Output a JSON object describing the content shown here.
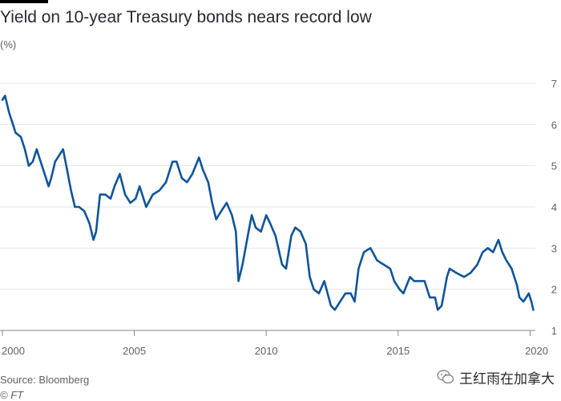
{
  "header": {
    "title": "Yield on 10-year Treasury bonds nears record low",
    "unit": "(%)"
  },
  "footer": {
    "source": "Source: Bloomberg",
    "credit": "© FT"
  },
  "watermark": {
    "text": "王红雨在加拿大",
    "icon": "wechat-icon"
  },
  "colors": {
    "line": "#0f5499",
    "grid": "#e6e6e6",
    "axis": "#66605c",
    "text": "#33302e"
  },
  "chart_data": {
    "type": "line",
    "title": "Yield on 10-year Treasury bonds nears record low",
    "ylabel": "(%)",
    "xlabel": "",
    "xlim": [
      2000,
      2020.2
    ],
    "ylim": [
      1,
      7
    ],
    "y_ticks": [
      1,
      2,
      3,
      4,
      5,
      6,
      7
    ],
    "x_ticks": [
      "2000",
      "2005",
      "2010",
      "2015",
      "2020"
    ],
    "grid": true,
    "y_axis_side": "right",
    "series": [
      {
        "x": [
          2000.0,
          2000.1,
          2000.25,
          2000.4,
          2000.5,
          2000.7,
          2000.85,
          2001.0,
          2001.15,
          2001.3,
          2001.45,
          2001.6,
          2001.75,
          2001.85,
          2002.0,
          2002.2,
          2002.3,
          2002.45,
          2002.6,
          2002.75,
          2002.9,
          2003.1,
          2003.3,
          2003.45,
          2003.55,
          2003.7,
          2003.9,
          2004.1,
          2004.25,
          2004.45,
          2004.65,
          2004.85,
          2005.05,
          2005.2,
          2005.45,
          2005.7,
          2005.95,
          2006.2,
          2006.45,
          2006.6,
          2006.8,
          2007.0,
          2007.2,
          2007.45,
          2007.6,
          2007.8,
          2007.95,
          2008.1,
          2008.3,
          2008.5,
          2008.7,
          2008.85,
          2008.95,
          2009.1,
          2009.3,
          2009.45,
          2009.6,
          2009.8,
          2010.0,
          2010.15,
          2010.35,
          2010.6,
          2010.75,
          2010.95,
          2011.1,
          2011.3,
          2011.5,
          2011.65,
          2011.8,
          2012.0,
          2012.2,
          2012.45,
          2012.6,
          2012.8,
          2013.0,
          2013.2,
          2013.35,
          2013.5,
          2013.7,
          2013.95,
          2014.2,
          2014.45,
          2014.7,
          2014.85,
          2015.05,
          2015.2,
          2015.45,
          2015.6,
          2015.8,
          2016.0,
          2016.2,
          2016.4,
          2016.5,
          2016.65,
          2016.85,
          2016.95,
          2017.2,
          2017.5,
          2017.75,
          2018.0,
          2018.2,
          2018.4,
          2018.6,
          2018.8,
          2018.95,
          2019.1,
          2019.3,
          2019.5,
          2019.6,
          2019.75,
          2019.95,
          2020.05,
          2020.12
        ],
        "y": [
          6.6,
          6.7,
          6.3,
          6.0,
          5.8,
          5.7,
          5.4,
          5.0,
          5.1,
          5.4,
          5.1,
          4.8,
          4.5,
          4.7,
          5.1,
          5.3,
          5.4,
          4.9,
          4.4,
          4.0,
          4.0,
          3.9,
          3.6,
          3.2,
          3.4,
          4.3,
          4.3,
          4.2,
          4.5,
          4.8,
          4.3,
          4.1,
          4.2,
          4.5,
          4.0,
          4.3,
          4.4,
          4.6,
          5.1,
          5.1,
          4.7,
          4.6,
          4.8,
          5.2,
          4.9,
          4.6,
          4.1,
          3.7,
          3.9,
          4.1,
          3.8,
          3.4,
          2.2,
          2.6,
          3.3,
          3.8,
          3.5,
          3.4,
          3.8,
          3.6,
          3.3,
          2.6,
          2.5,
          3.3,
          3.5,
          3.4,
          3.1,
          2.3,
          2.0,
          1.9,
          2.2,
          1.6,
          1.5,
          1.7,
          1.9,
          1.9,
          1.7,
          2.5,
          2.9,
          3.0,
          2.7,
          2.6,
          2.5,
          2.2,
          2.0,
          1.9,
          2.3,
          2.2,
          2.2,
          2.2,
          1.8,
          1.8,
          1.5,
          1.6,
          2.3,
          2.5,
          2.4,
          2.3,
          2.4,
          2.6,
          2.9,
          3.0,
          2.9,
          3.2,
          2.9,
          2.7,
          2.5,
          2.1,
          1.8,
          1.7,
          1.9,
          1.7,
          1.5
        ]
      }
    ]
  }
}
